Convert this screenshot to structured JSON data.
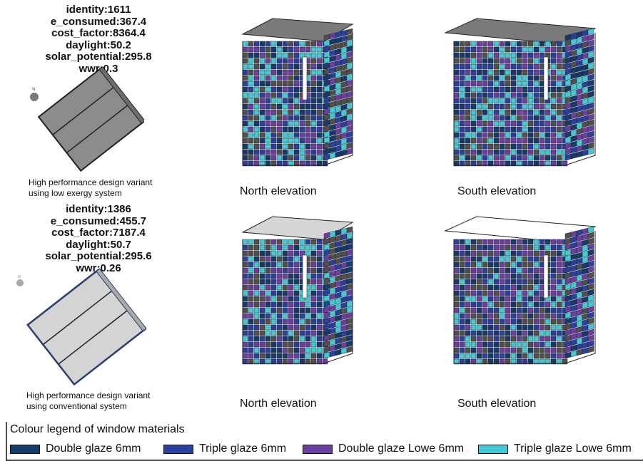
{
  "variants": [
    {
      "stats": [
        "identity:1611",
        "e_consumed:367.4",
        "cost_factor:8364.4",
        "daylight:50.2",
        "solar_potential:295.8",
        "wwr:0.3"
      ],
      "caption_lines": [
        "High performance design variant",
        "using low exergy system"
      ],
      "roof_color": "#7a7a7a",
      "plan_fill": "#8c8c8c",
      "north_label": "N"
    },
    {
      "stats": [
        "identity:1386",
        "e_consumed:455.7",
        "cost_factor:7187.4",
        "daylight:50.7",
        "solar_potential:295.6",
        "wwr:0.26"
      ],
      "caption_lines": [
        "High performance design variant",
        "using conventional system"
      ],
      "roof_color": "#d6d6d6",
      "plan_fill": "#d4d4d4",
      "north_label": "N"
    }
  ],
  "elevation_labels": {
    "north": "North elevation",
    "south": "South elevation"
  },
  "legend": {
    "title": "Colour legend of window materials",
    "items": [
      {
        "label": "Double glaze 6mm",
        "color": "#163a6b"
      },
      {
        "label": "Triple glaze 6mm",
        "color": "#2a3f9e"
      },
      {
        "label": "Double glaze Lowe 6mm",
        "color": "#6a3fa0"
      },
      {
        "label": "Triple glaze Lowe 6mm",
        "color": "#44c9d4"
      }
    ]
  },
  "facade_colors": [
    "#163a6b",
    "#2a3f9e",
    "#6a3fa0",
    "#44c9d4",
    "#4f4f4f"
  ]
}
